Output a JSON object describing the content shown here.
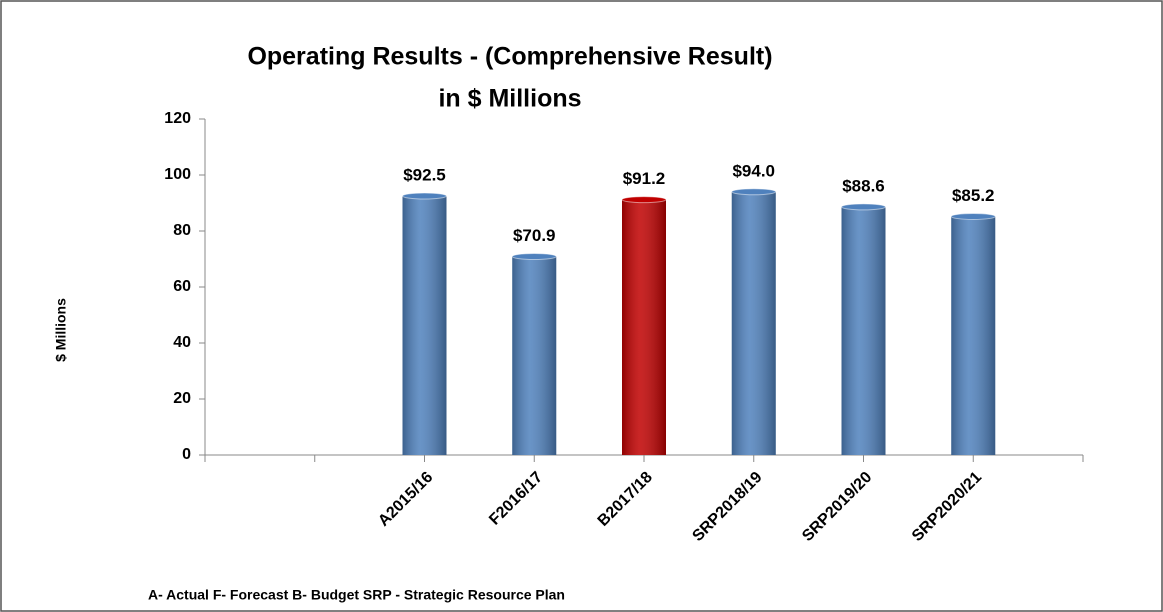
{
  "chart_data": {
    "type": "bar",
    "title": [
      "Operating Results - (Comprehensive Result)",
      "in $ Millions"
    ],
    "y_label": "$ Millions",
    "note": "A- Actual  F- Forecast  B- Budget  SRP - Strategic Resource Plan",
    "categories": [
      null,
      "A2015/16",
      "F2016/17",
      "B2017/18",
      "SRP2018/19",
      "SRP2019/20",
      "SRP2020/21"
    ],
    "values": [
      null,
      92.5,
      70.9,
      91.2,
      94.0,
      88.6,
      85.2
    ],
    "value_labels": [
      null,
      "$92.5",
      "$70.9",
      "$91.2",
      "$94.0",
      "$88.6",
      "$85.2"
    ],
    "colors": [
      null,
      "#4f81bd",
      "#4f81bd",
      "#c00000",
      "#4f81bd",
      "#4f81bd",
      "#4f81bd"
    ],
    "ylim": [
      0,
      120
    ],
    "yticks": [
      0,
      20,
      40,
      60,
      80,
      100,
      120
    ],
    "grid": false
  }
}
